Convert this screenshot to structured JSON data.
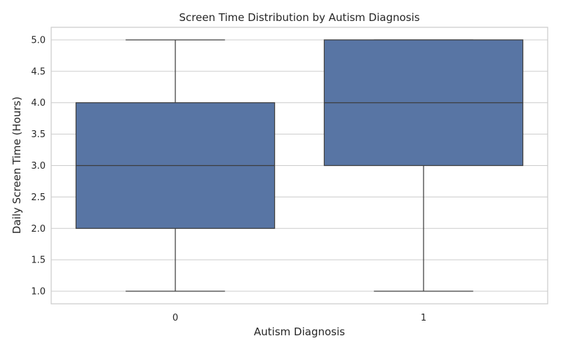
{
  "chart_data": {
    "type": "box",
    "title": "Screen Time Distribution by Autism Diagnosis",
    "xlabel": "Autism Diagnosis",
    "ylabel": "Daily Screen Time (Hours)",
    "categories": [
      "0",
      "1"
    ],
    "ylim": [
      0.8,
      5.2
    ],
    "yticks": [
      1.0,
      1.5,
      2.0,
      2.5,
      3.0,
      3.5,
      4.0,
      4.5,
      5.0
    ],
    "ytick_labels": [
      "1.0",
      "1.5",
      "2.0",
      "2.5",
      "3.0",
      "3.5",
      "4.0",
      "4.5",
      "5.0"
    ],
    "grid": true,
    "boxes": [
      {
        "category": "0",
        "whisker_low": 1.0,
        "q1": 2.0,
        "median": 3.0,
        "q3": 4.0,
        "whisker_high": 5.0
      },
      {
        "category": "1",
        "whisker_low": 1.0,
        "q1": 3.0,
        "median": 4.0,
        "q3": 5.0,
        "whisker_high": 5.0
      }
    ],
    "colors": {
      "box_fill": "#5875a4",
      "line": "#3d3d3d",
      "grid": "#cccccc",
      "frame": "#cccccc"
    }
  }
}
